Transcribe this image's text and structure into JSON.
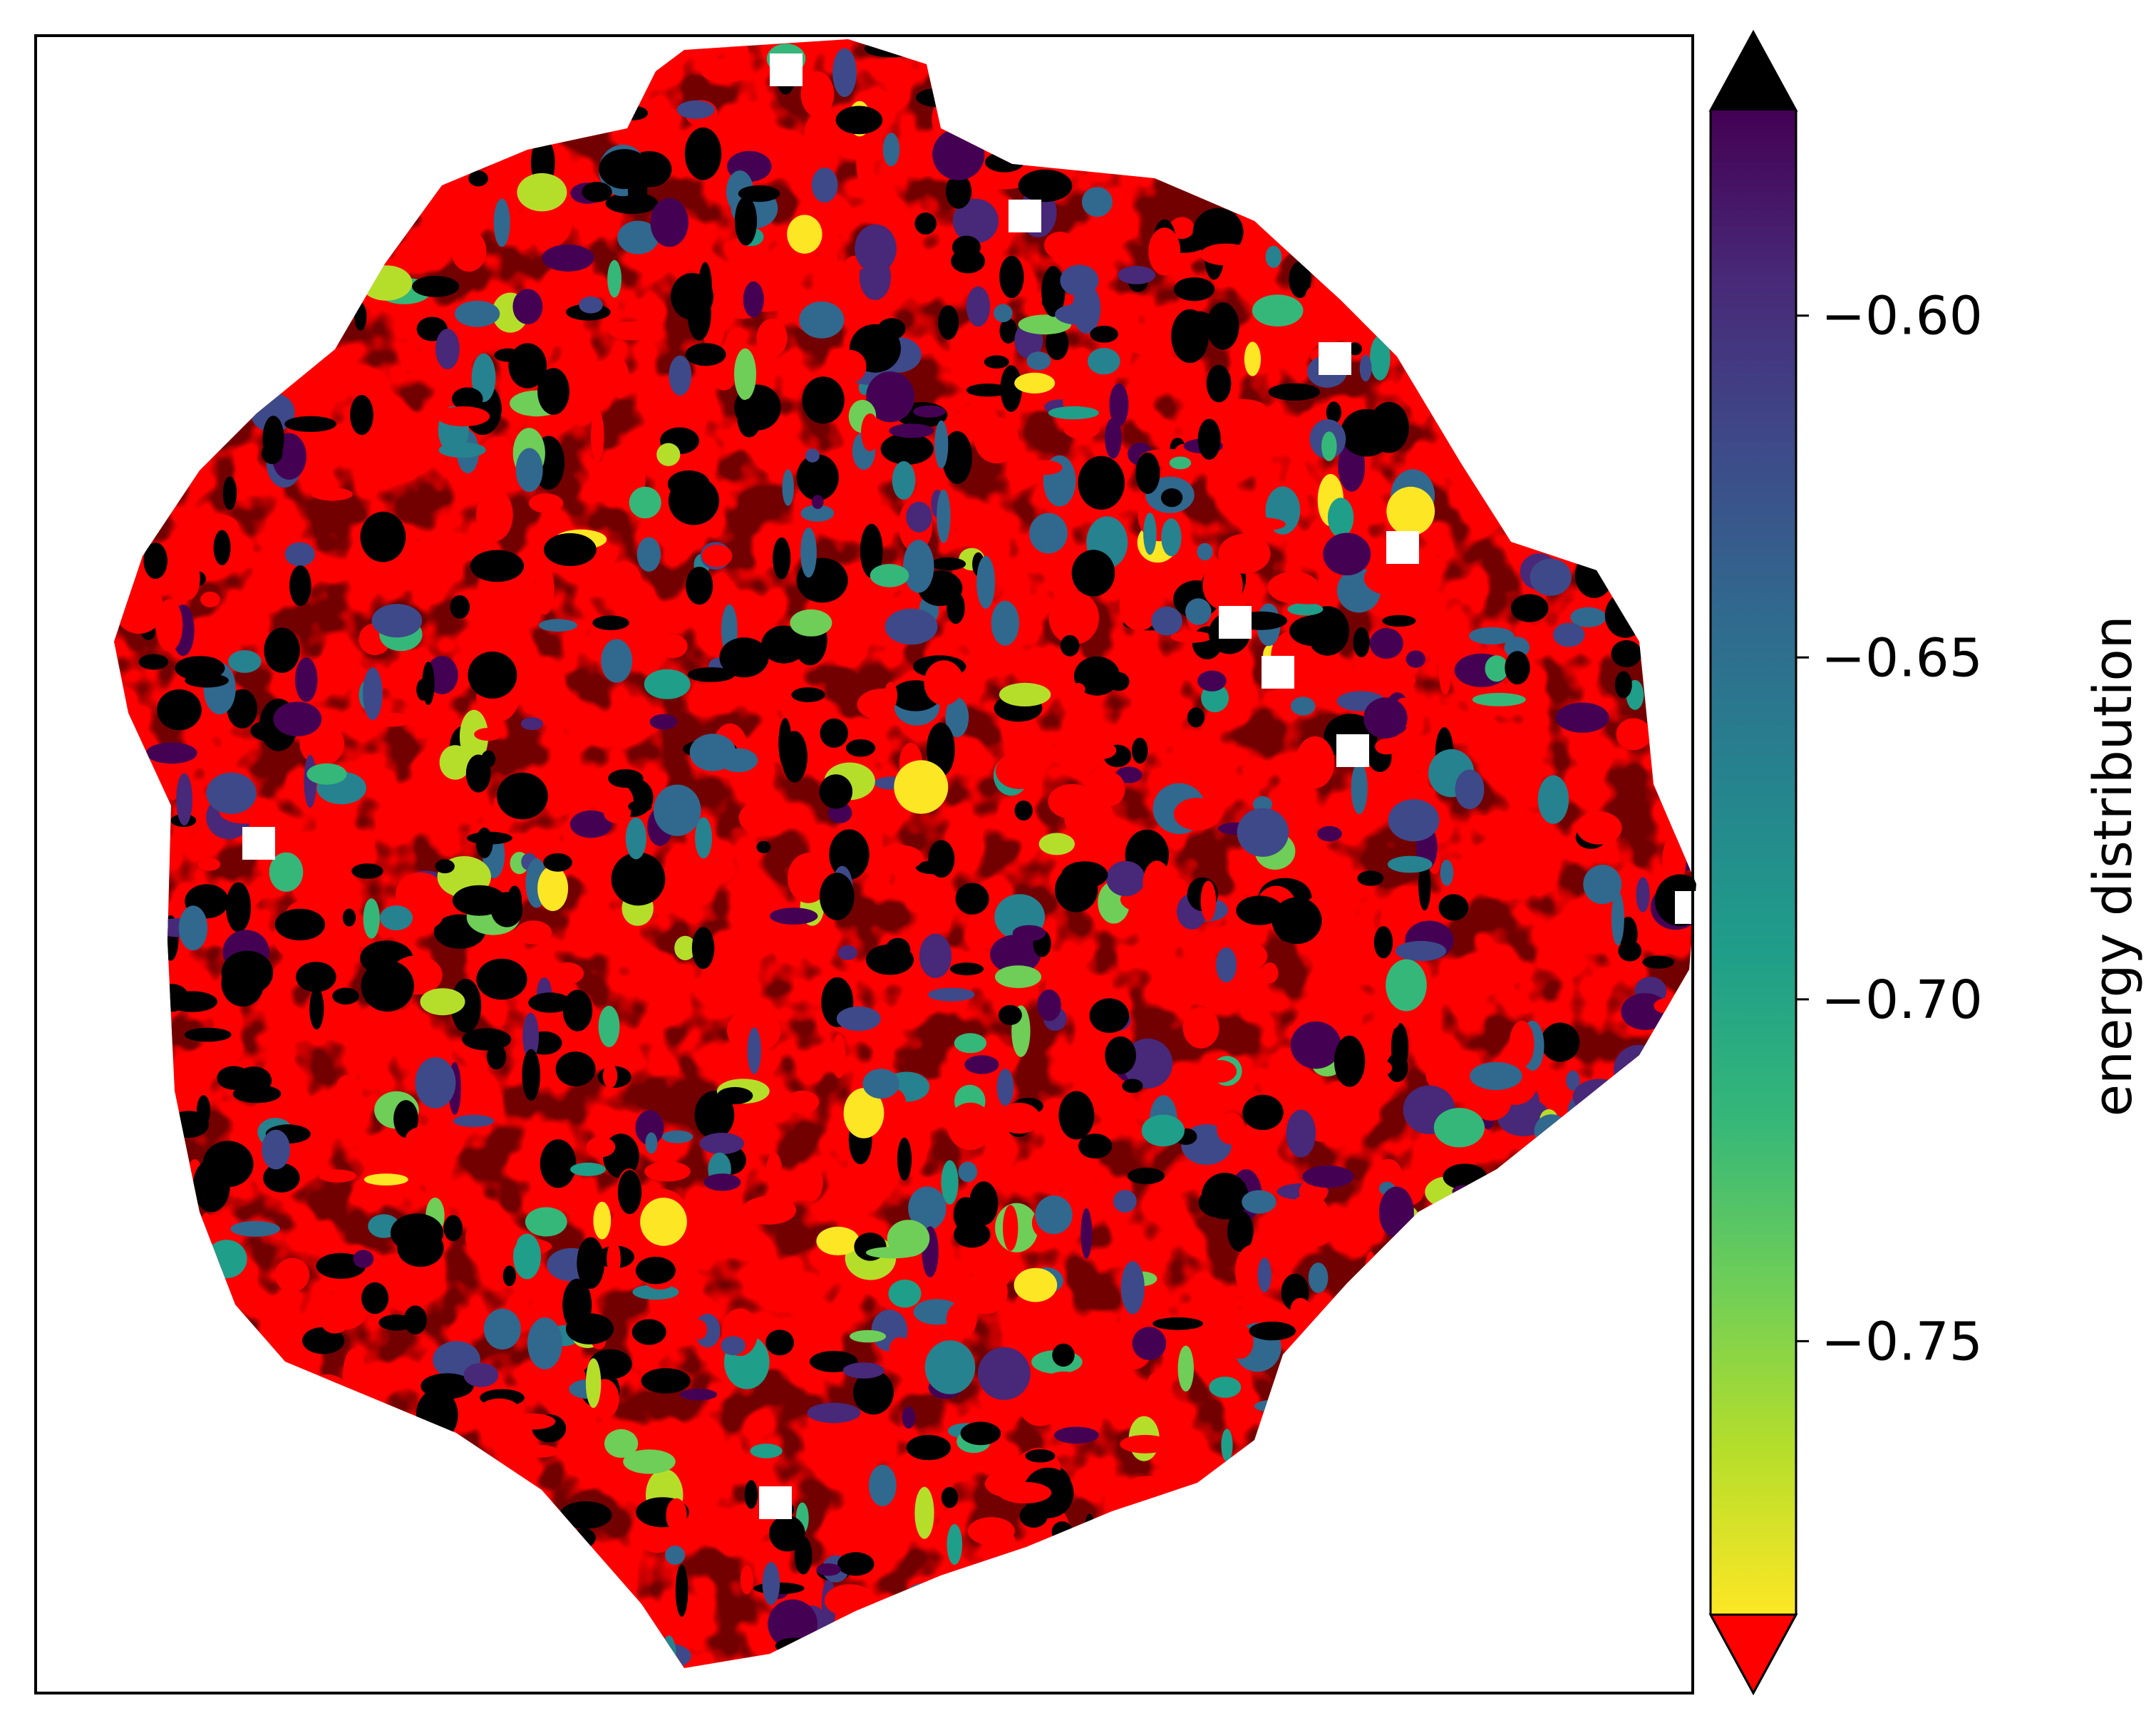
{
  "chart_data": {
    "type": "heatmap",
    "title": "",
    "xlabel": "",
    "ylabel": "",
    "axes_ticks_visible": false,
    "colormap": "viridis_r",
    "under_color": "#ff0000",
    "over_color": "#000000",
    "colorbar": {
      "label": "energy distribution",
      "vmin": -0.79,
      "vmax": -0.57,
      "ticks": [
        -0.6,
        -0.65,
        -0.7,
        -0.75
      ],
      "tick_labels": [
        "−0.60",
        "−0.65",
        "−0.70",
        "−0.75"
      ],
      "extend": "both",
      "orientation": "vertical",
      "placement": "right"
    },
    "field_description_values": {
      "low_region": "right / lower-right of the blob, mostly below -0.79 (red)",
      "high_region": "left / upper-left of the blob, mostly above -0.57 (black)"
    }
  },
  "colors": {
    "under": "#ff0000",
    "over": "#000000",
    "viridis_stops": [
      "#440154",
      "#482878",
      "#3e4989",
      "#31688e",
      "#26828e",
      "#1f9e89",
      "#35b779",
      "#6ece58",
      "#b5de2b",
      "#fde725"
    ]
  }
}
